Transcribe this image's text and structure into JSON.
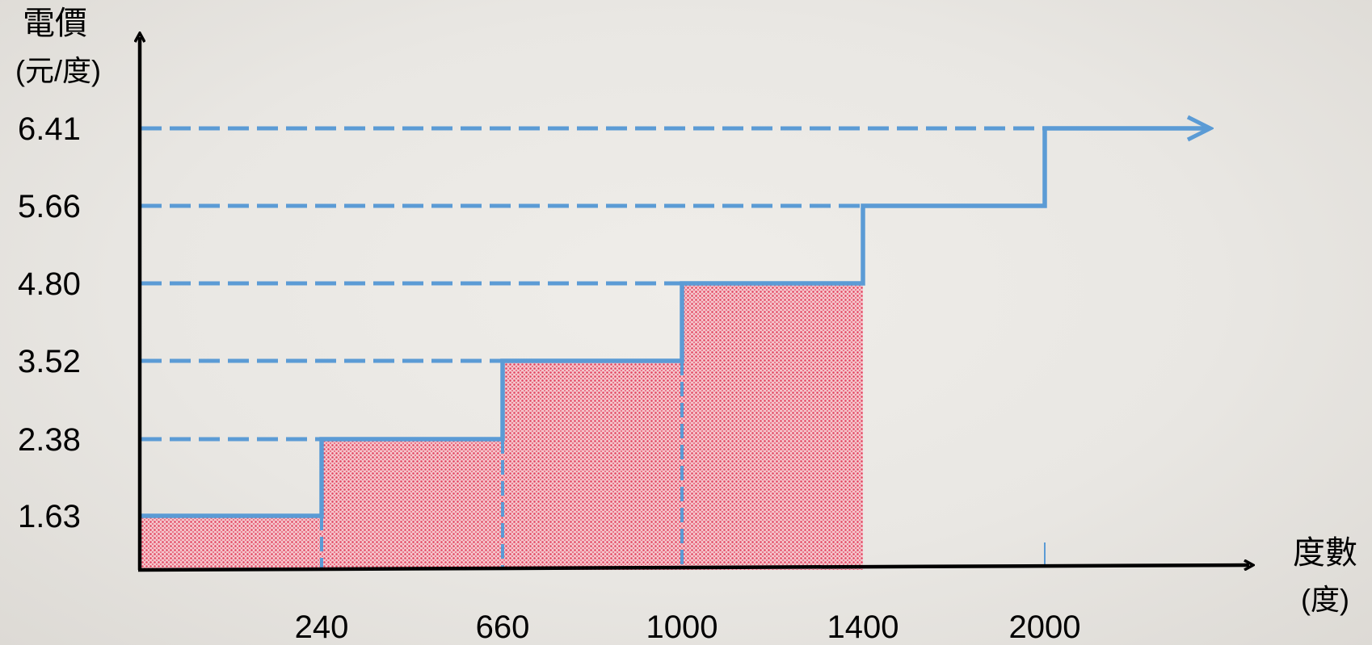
{
  "chart_data": {
    "type": "area",
    "ylabel_lines": [
      "電價",
      "(元/度)"
    ],
    "xlabel_lines": [
      "度數",
      "(度)"
    ],
    "y_ticks": [
      "1.63",
      "2.38",
      "3.52",
      "4.80",
      "5.66",
      "6.41"
    ],
    "x_ticks": [
      "240",
      "660",
      "1000",
      "1400",
      "2000"
    ],
    "tiers": [
      {
        "from": 0,
        "to": 240,
        "price": 1.63,
        "filled": true
      },
      {
        "from": 240,
        "to": 660,
        "price": 2.38,
        "filled": true
      },
      {
        "from": 660,
        "to": 1000,
        "price": 3.52,
        "filled": true
      },
      {
        "from": 1000,
        "to": 1400,
        "price": 4.8,
        "filled": true
      },
      {
        "from": 1400,
        "to": 2000,
        "price": 5.66,
        "filled": false
      },
      {
        "from": 2000,
        "to": null,
        "price": 6.41,
        "filled": false
      }
    ],
    "colors": {
      "step_line": "#5b9bd5",
      "fill": "#e8506a",
      "axis": "#000000"
    }
  }
}
